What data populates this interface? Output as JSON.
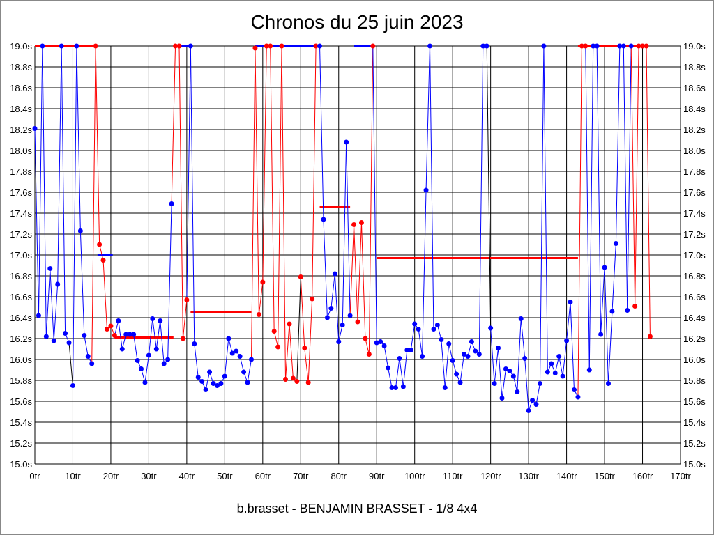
{
  "chart_data": {
    "type": "line",
    "title": "Chronos du 25 juin 2023",
    "subtitle": "b.brasset - BENJAMIN BRASSET - 1/8 4x4",
    "xlabel": "",
    "ylabel": "",
    "xlim": [
      0,
      170
    ],
    "ylim": [
      15.0,
      19.0
    ],
    "x_ticks": [
      0,
      10,
      20,
      30,
      40,
      50,
      60,
      70,
      80,
      90,
      100,
      110,
      120,
      130,
      140,
      150,
      160,
      170
    ],
    "x_tick_suffix": "tr",
    "y_ticks": [
      15.0,
      15.2,
      15.4,
      15.6,
      15.8,
      16.0,
      16.2,
      16.4,
      16.6,
      16.8,
      17.0,
      17.2,
      17.4,
      17.6,
      17.8,
      18.0,
      18.2,
      18.4,
      18.6,
      18.8,
      19.0
    ],
    "y_tick_suffix": "s",
    "grid": true,
    "colors": {
      "blue": "#0000ff",
      "red": "#ff0000",
      "black": "#000000"
    },
    "segments": [
      {
        "color": "blue",
        "start": 0,
        "values": [
          18.21,
          16.42,
          19.0,
          16.22,
          16.87,
          16.18,
          16.72,
          19.0,
          16.25,
          16.16,
          15.75,
          19.0,
          17.23,
          16.23,
          16.03,
          15.96
        ]
      },
      {
        "color": "red",
        "start": 16,
        "values": [
          19.0,
          17.1,
          16.95,
          16.29,
          16.32,
          16.23
        ]
      },
      {
        "color": "blue",
        "start": 22,
        "values": [
          16.37,
          16.1,
          16.24,
          16.24,
          16.24,
          15.99,
          15.91,
          15.78,
          16.04,
          16.39,
          16.1,
          16.37,
          15.96,
          16.0,
          17.49
        ]
      },
      {
        "color": "red",
        "start": 37,
        "values": [
          19.0,
          19.0,
          16.2,
          16.57
        ]
      },
      {
        "color": "blue",
        "start": 41,
        "values": [
          19.0,
          16.15,
          15.83,
          15.79,
          15.71,
          15.88,
          15.77,
          15.75,
          15.77,
          15.84,
          16.2,
          16.06,
          16.08,
          16.03,
          15.88,
          15.78,
          16.0
        ]
      },
      {
        "color": "red",
        "start": 58,
        "values": [
          18.98,
          16.43,
          16.74,
          19.0,
          19.0,
          16.27,
          16.12,
          19.0,
          15.81,
          16.34,
          15.82,
          15.79,
          16.79,
          16.11,
          15.78,
          16.58,
          19.0
        ]
      },
      {
        "color": "blue",
        "start": 75,
        "values": [
          19.0,
          17.34,
          16.4,
          16.49,
          16.82,
          16.17,
          16.33,
          18.08,
          16.42
        ]
      },
      {
        "color": "red",
        "start": 84,
        "values": [
          17.29,
          16.36,
          17.31,
          16.2,
          16.05,
          19.0
        ]
      },
      {
        "color": "blue",
        "start": 90,
        "values": [
          16.16,
          16.17,
          16.13,
          15.92,
          15.73,
          15.73,
          16.01,
          15.74,
          16.09,
          16.09,
          16.34,
          16.29,
          16.03,
          17.62,
          19.0,
          16.29,
          16.33,
          16.19,
          15.73,
          16.15,
          15.99,
          15.86,
          15.78,
          16.05,
          16.03,
          16.17,
          16.08,
          16.05,
          19.0,
          19.0,
          16.3,
          15.77,
          16.11,
          15.63,
          15.91,
          15.89,
          15.84,
          15.69,
          16.39,
          16.01,
          15.51,
          15.61,
          15.57,
          15.77,
          19.0,
          15.88,
          15.96,
          15.87,
          16.03,
          15.84,
          16.18,
          16.55,
          15.71,
          15.64
        ]
      },
      {
        "color": "red",
        "start": 144,
        "values": [
          19.0,
          19.0
        ]
      },
      {
        "color": "blue",
        "start": 146,
        "values": [
          15.9,
          19.0,
          19.0,
          16.24,
          16.88,
          15.77,
          16.46,
          17.11,
          19.0,
          19.0,
          16.47,
          19.0
        ]
      },
      {
        "color": "red",
        "start": 158,
        "values": [
          16.51,
          19.0,
          19.0,
          19.0,
          16.22
        ]
      }
    ],
    "averages": [
      {
        "color": "red",
        "from": 0,
        "to": 16,
        "value": 19.0
      },
      {
        "color": "blue",
        "from": 16.5,
        "to": 20.5,
        "value": 17.0
      },
      {
        "color": "red",
        "from": 21,
        "to": 36.5,
        "value": 16.21
      },
      {
        "color": "blue",
        "from": 38,
        "to": 41,
        "value": 19.0
      },
      {
        "color": "red",
        "from": 41,
        "to": 57,
        "value": 16.45
      },
      {
        "color": "blue",
        "from": 58,
        "to": 75,
        "value": 19.0
      },
      {
        "color": "red",
        "from": 75,
        "to": 83,
        "value": 17.46
      },
      {
        "color": "blue",
        "from": 84,
        "to": 89,
        "value": 19.0
      },
      {
        "color": "red",
        "from": 90,
        "to": 143,
        "value": 16.97
      },
      {
        "color": "red",
        "from": 143,
        "to": 161,
        "value": 19.0
      }
    ],
    "markers": [
      10,
      70,
      120
    ]
  }
}
